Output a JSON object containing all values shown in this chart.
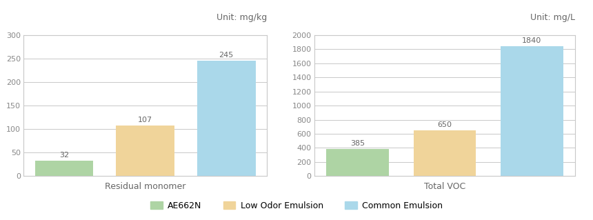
{
  "chart1": {
    "title": "Residual monomer",
    "unit": "Unit: mg/kg",
    "values": [
      32,
      107,
      245
    ],
    "ylim": [
      0,
      300
    ],
    "yticks": [
      0,
      50,
      100,
      150,
      200,
      250,
      300
    ]
  },
  "chart2": {
    "title": "Total VOC",
    "unit": "Unit: mg/L",
    "values": [
      385,
      650,
      1840
    ],
    "ylim": [
      0,
      2000
    ],
    "yticks": [
      0,
      200,
      400,
      600,
      800,
      1000,
      1200,
      1400,
      1600,
      1800,
      2000
    ]
  },
  "bar_colors": [
    "#aed4a4",
    "#f0d49a",
    "#aad8ea"
  ],
  "legend_labels": [
    "AE662N",
    "Low Odor Emulsion",
    "Common Emulsion"
  ],
  "figure_bg": "#ffffff",
  "axes_bg": "#ffffff",
  "grid_color": "#c8c8c8",
  "spine_color": "#c8c8c8",
  "tick_color": "#888888",
  "text_color": "#666666",
  "val_color": "#666666",
  "label_fontsize": 9,
  "tick_fontsize": 8,
  "unit_fontsize": 9,
  "val_fontsize": 8,
  "legend_fontsize": 9,
  "bar_width": 0.72,
  "bar_gap": 0.04
}
